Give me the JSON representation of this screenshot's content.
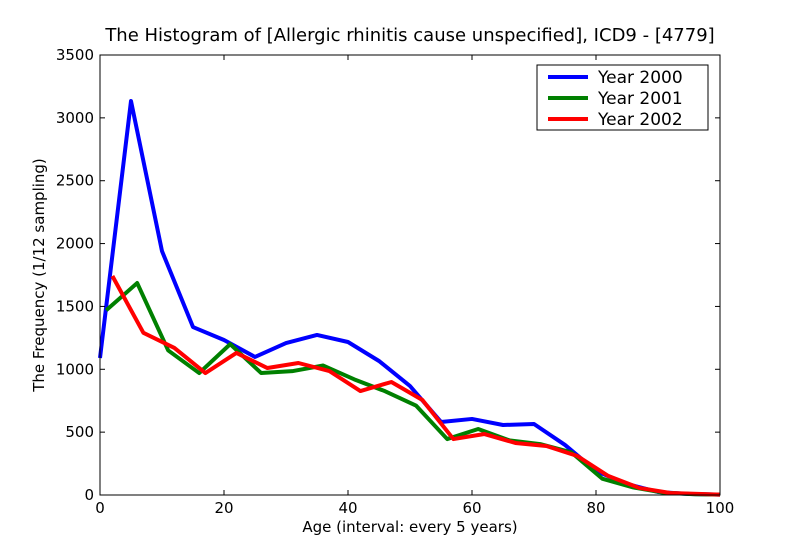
{
  "chart_data": {
    "type": "line",
    "title": "The Histogram of [Allergic rhinitis cause unspecified], ICD9 - [4779]",
    "xlabel": "Age (interval: every 5 years)",
    "ylabel": "The Frequency (1/12 sampling)",
    "xlim": [
      0,
      100
    ],
    "ylim": [
      0,
      3500
    ],
    "xticks": [
      0,
      20,
      40,
      60,
      80,
      100
    ],
    "yticks": [
      0,
      500,
      1000,
      1500,
      2000,
      2500,
      3000,
      3500
    ],
    "grid": false,
    "legend_position": "top-right",
    "series": [
      {
        "name": "Year 2000",
        "color": "#0000ff",
        "x": [
          0,
          5,
          10,
          15,
          20,
          25,
          30,
          35,
          40,
          45,
          50,
          55,
          60,
          65,
          70,
          75,
          80,
          85,
          90,
          95,
          100
        ],
        "y": [
          1090,
          3134,
          1940,
          1336,
          1233,
          1098,
          1209,
          1273,
          1217,
          1066,
          867,
          581,
          605,
          557,
          565,
          398,
          191,
          88,
          24,
          8,
          3
        ]
      },
      {
        "name": "Year 2001",
        "color": "#008000",
        "x": [
          1,
          6,
          11,
          16,
          21,
          26,
          31,
          36,
          41,
          46,
          51,
          56,
          61,
          66,
          71,
          76,
          81,
          86,
          91,
          96,
          100
        ],
        "y": [
          1470,
          1686,
          1150,
          970,
          1200,
          970,
          985,
          1030,
          920,
          825,
          710,
          445,
          525,
          435,
          405,
          340,
          130,
          60,
          18,
          6,
          3
        ]
      },
      {
        "name": "Year 2002",
        "color": "#ff0000",
        "x": [
          2,
          7,
          12,
          17,
          22,
          27,
          32,
          37,
          42,
          47,
          52,
          57,
          62,
          67,
          72,
          77,
          82,
          87,
          92,
          97,
          100
        ],
        "y": [
          1742,
          1290,
          1170,
          970,
          1130,
          1010,
          1050,
          986,
          827,
          899,
          756,
          445,
          485,
          414,
          390,
          310,
          151,
          56,
          16,
          8,
          3
        ]
      }
    ]
  }
}
